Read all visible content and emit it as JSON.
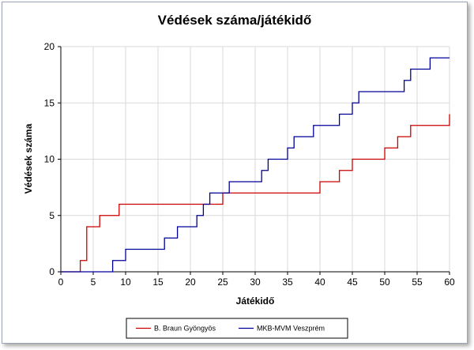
{
  "chart_data": {
    "type": "line",
    "title": "Védések száma/játékidő",
    "xlabel": "Játékidő",
    "ylabel": "Védések száma",
    "xlim": [
      0,
      60
    ],
    "ylim": [
      0,
      20
    ],
    "xticks": [
      0,
      5,
      10,
      15,
      20,
      25,
      30,
      35,
      40,
      45,
      50,
      55,
      60
    ],
    "yticks": [
      0,
      5,
      10,
      15,
      20
    ],
    "grid": true,
    "legend_position": "bottom",
    "step": true,
    "series": [
      {
        "name": "B. Braun Gyöngyös",
        "color": "#cc0000",
        "points": [
          [
            0,
            0
          ],
          [
            3,
            1
          ],
          [
            4,
            4
          ],
          [
            6,
            5
          ],
          [
            9,
            6
          ],
          [
            25,
            7
          ],
          [
            40,
            8
          ],
          [
            43,
            9
          ],
          [
            45,
            10
          ],
          [
            50,
            11
          ],
          [
            52,
            12
          ],
          [
            54,
            13
          ],
          [
            60,
            14
          ]
        ]
      },
      {
        "name": "MKB-MVM Veszprém",
        "color": "#000099",
        "points": [
          [
            0,
            0
          ],
          [
            8,
            1
          ],
          [
            10,
            2
          ],
          [
            16,
            3
          ],
          [
            18,
            4
          ],
          [
            21,
            5
          ],
          [
            22,
            6
          ],
          [
            23,
            7
          ],
          [
            26,
            8
          ],
          [
            31,
            9
          ],
          [
            32,
            10
          ],
          [
            35,
            11
          ],
          [
            36,
            12
          ],
          [
            39,
            13
          ],
          [
            43,
            14
          ],
          [
            45,
            15
          ],
          [
            46,
            16
          ],
          [
            53,
            17
          ],
          [
            54,
            18
          ],
          [
            57,
            19
          ],
          [
            60,
            19
          ]
        ]
      }
    ]
  }
}
